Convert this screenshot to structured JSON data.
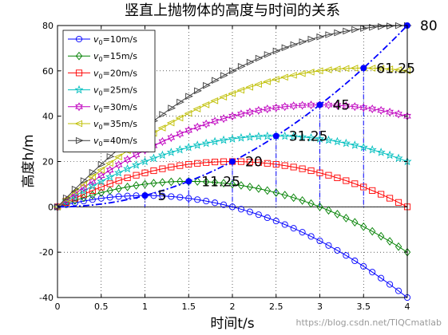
{
  "chart_data": {
    "type": "line",
    "title": "竖直上抛物体的高度与时间的关系",
    "xlabel": "时间t/s",
    "ylabel": "高度h/m",
    "xlim": [
      0,
      4
    ],
    "ylim": [
      -40,
      80
    ],
    "x_ticks": [
      "0",
      "0.5",
      "1",
      "1.5",
      "2",
      "2.5",
      "3",
      "3.5",
      "4"
    ],
    "y_ticks": [
      "-40",
      "-20",
      "0",
      "20",
      "40",
      "60",
      "80"
    ],
    "grid": true,
    "legend_position": "top-left",
    "x": [
      0,
      0.1,
      0.2,
      0.3,
      0.4,
      0.5,
      0.6,
      0.7,
      0.8,
      0.9,
      1.0,
      1.1,
      1.2,
      1.3,
      1.4,
      1.5,
      1.6,
      1.7,
      1.8,
      1.9,
      2.0,
      2.1,
      2.2,
      2.3,
      2.4,
      2.5,
      2.6,
      2.7,
      2.8,
      2.9,
      3.0,
      3.1,
      3.2,
      3.3,
      3.4,
      3.5,
      3.6,
      3.7,
      3.8,
      3.9,
      4.0
    ],
    "series": [
      {
        "name": "v0=10m/s",
        "label_pre": "v",
        "label_sub": "0",
        "label_post": "=10m/s",
        "v0": 10,
        "color": "#0000ff",
        "marker": "circle",
        "values": [
          0,
          0.95,
          1.8,
          2.55,
          3.2,
          3.75,
          4.2,
          4.55,
          4.8,
          4.95,
          5,
          4.95,
          4.8,
          4.55,
          4.2,
          3.75,
          3.2,
          2.55,
          1.8,
          0.95,
          0,
          -1.05,
          -2.2,
          -3.45,
          -4.8,
          -6.25,
          -7.8,
          -9.45,
          -11.2,
          -13.05,
          -15,
          -17.05,
          -19.2,
          -21.45,
          -23.8,
          -26.25,
          -28.8,
          -31.45,
          -34.2,
          -37.05,
          -40
        ]
      },
      {
        "name": "v0=15m/s",
        "label_pre": "v",
        "label_sub": "0",
        "label_post": "=15m/s",
        "v0": 15,
        "color": "#008000",
        "marker": "diamond",
        "values": [
          0,
          1.45,
          2.8,
          4.05,
          5.2,
          6.25,
          7.2,
          8.05,
          8.8,
          9.45,
          10,
          10.45,
          10.8,
          11.05,
          11.2,
          11.25,
          11.2,
          11.05,
          10.8,
          10.45,
          10,
          9.45,
          8.8,
          8.05,
          7.2,
          6.25,
          5.2,
          4.05,
          2.8,
          1.45,
          0,
          -1.55,
          -3.2,
          -4.95,
          -6.8,
          -8.75,
          -10.8,
          -12.95,
          -15.2,
          -17.55,
          -20
        ]
      },
      {
        "name": "v0=20m/s",
        "label_pre": "v",
        "label_sub": "0",
        "label_post": "=20m/s",
        "v0": 20,
        "color": "#ff0000",
        "marker": "square",
        "values": [
          0,
          1.95,
          3.8,
          5.55,
          7.2,
          8.75,
          10.2,
          11.55,
          12.8,
          13.95,
          15,
          15.95,
          16.8,
          17.55,
          18.2,
          18.75,
          19.2,
          19.55,
          19.8,
          19.95,
          20,
          19.95,
          19.8,
          19.55,
          19.2,
          18.75,
          18.2,
          17.55,
          16.8,
          15.95,
          15,
          13.95,
          12.8,
          11.55,
          10.2,
          8.75,
          7.2,
          5.55,
          3.8,
          1.95,
          0
        ]
      },
      {
        "name": "v0=25m/s",
        "label_pre": "v",
        "label_sub": "0",
        "label_post": "=25m/s",
        "v0": 25,
        "color": "#00bfbf",
        "marker": "star",
        "values": [
          0,
          2.45,
          4.8,
          7.05,
          9.2,
          11.25,
          13.2,
          15.05,
          16.8,
          18.45,
          20,
          21.45,
          22.8,
          24.05,
          25.2,
          26.25,
          27.2,
          28.05,
          28.8,
          29.45,
          30,
          30.45,
          30.8,
          31.05,
          31.2,
          31.25,
          31.2,
          31.05,
          30.8,
          30.45,
          30,
          29.45,
          28.8,
          28.05,
          27.2,
          26.25,
          25.2,
          24.05,
          22.8,
          21.45,
          20
        ]
      },
      {
        "name": "v0=30m/s",
        "label_pre": "v",
        "label_sub": "0",
        "label_post": "=30m/s",
        "v0": 30,
        "color": "#bf00bf",
        "marker": "hexagram",
        "values": [
          0,
          2.95,
          5.8,
          8.55,
          11.2,
          13.75,
          16.2,
          18.55,
          20.8,
          22.95,
          25,
          26.95,
          28.8,
          30.55,
          32.2,
          33.75,
          35.2,
          36.55,
          37.8,
          38.95,
          40,
          40.95,
          41.8,
          42.55,
          43.2,
          43.75,
          44.2,
          44.55,
          44.8,
          44.95,
          45,
          44.95,
          44.8,
          44.55,
          44.2,
          43.75,
          43.2,
          42.55,
          41.8,
          40.95,
          40
        ]
      },
      {
        "name": "v0=35m/s",
        "label_pre": "v",
        "label_sub": "0",
        "label_post": "=35m/s",
        "v0": 35,
        "color": "#bfbf00",
        "marker": "triangle-left",
        "values": [
          0,
          3.45,
          6.8,
          10.05,
          13.2,
          16.25,
          19.2,
          22.05,
          24.8,
          27.45,
          30,
          32.45,
          34.8,
          37.05,
          39.2,
          41.25,
          43.2,
          45.05,
          46.8,
          48.45,
          50,
          51.45,
          52.8,
          54.05,
          55.2,
          56.25,
          57.2,
          58.05,
          58.8,
          59.45,
          60,
          60.45,
          60.8,
          61.05,
          61.2,
          61.25,
          61.2,
          61.05,
          60.8,
          60.45,
          60
        ]
      },
      {
        "name": "v0=40m/s",
        "label_pre": "v",
        "label_sub": "0",
        "label_post": "=40m/s",
        "v0": 40,
        "color": "#3f3f3f",
        "marker": "triangle-right",
        "values": [
          0,
          3.95,
          7.8,
          11.55,
          15.2,
          18.75,
          22.2,
          25.55,
          28.8,
          31.95,
          35,
          37.95,
          40.8,
          43.55,
          46.2,
          48.75,
          51.2,
          53.55,
          55.8,
          57.95,
          60,
          61.95,
          63.8,
          65.55,
          67.2,
          68.75,
          70.2,
          71.55,
          72.8,
          73.95,
          75,
          75.95,
          76.8,
          77.55,
          78.2,
          78.75,
          79.2,
          79.55,
          79.8,
          79.95,
          80
        ]
      }
    ],
    "apex_curve": {
      "color": "#0000ff",
      "x": [
        0,
        0.1,
        0.2,
        0.3,
        0.4,
        0.5,
        0.6,
        0.7,
        0.8,
        0.9,
        1.0,
        1.1,
        1.2,
        1.3,
        1.4,
        1.5,
        1.6,
        1.7,
        1.8,
        1.9,
        2.0,
        2.1,
        2.2,
        2.3,
        2.4,
        2.5,
        2.6,
        2.7,
        2.8,
        2.9,
        3.0,
        3.1,
        3.2,
        3.3,
        3.4,
        3.5,
        3.6,
        3.7,
        3.8,
        3.9,
        4.0
      ],
      "y": [
        0,
        0.05,
        0.2,
        0.45,
        0.8,
        1.25,
        1.8,
        2.45,
        3.2,
        4.05,
        5,
        6.05,
        7.2,
        8.45,
        9.8,
        11.25,
        12.8,
        14.45,
        16.2,
        18.05,
        20,
        22.05,
        24.2,
        26.45,
        28.8,
        31.25,
        33.8,
        36.45,
        39.2,
        42.05,
        45,
        48.05,
        51.2,
        54.45,
        57.8,
        61.25,
        64.8,
        68.45,
        72.2,
        76.05,
        80
      ]
    },
    "apex_points": [
      {
        "x": 1.0,
        "y": 5,
        "label": "5"
      },
      {
        "x": 1.5,
        "y": 11.25,
        "label": "11.25"
      },
      {
        "x": 2.0,
        "y": 20,
        "label": "20"
      },
      {
        "x": 2.5,
        "y": 31.25,
        "label": "31.25"
      },
      {
        "x": 3.0,
        "y": 45,
        "label": "45"
      },
      {
        "x": 3.5,
        "y": 61.25,
        "label": "61.25"
      },
      {
        "x": 4.0,
        "y": 80,
        "label": "80"
      }
    ]
  },
  "watermark": "https://blog.csdn.net/TIQCmatlab"
}
